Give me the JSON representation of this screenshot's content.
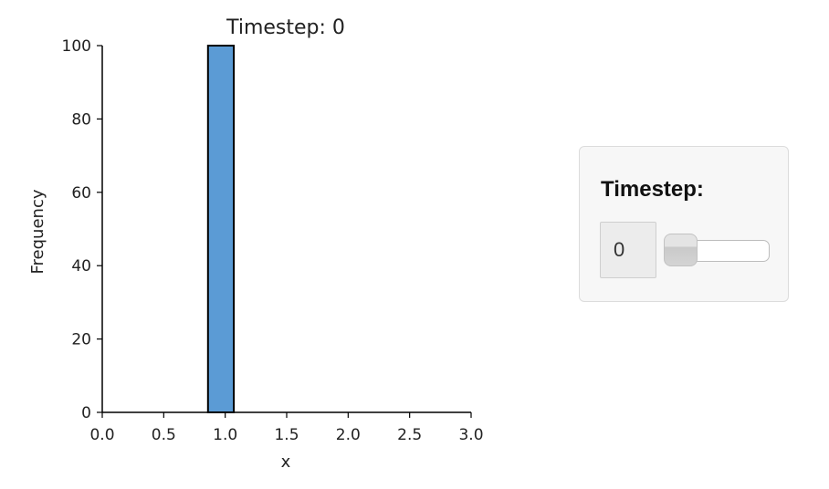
{
  "chart_data": {
    "type": "bar",
    "title": "Timestep: 0",
    "xlabel": "x",
    "ylabel": "Frequency",
    "xlim": [
      0.0,
      3.0
    ],
    "ylim": [
      0,
      100
    ],
    "xticks": [
      "0.0",
      "0.5",
      "1.0",
      "1.5",
      "2.0",
      "2.5",
      "3.0"
    ],
    "yticks": [
      "0",
      "20",
      "40",
      "60",
      "80",
      "100"
    ],
    "bars": [
      {
        "x_start": 0.86,
        "x_end": 1.07,
        "value": 100
      }
    ],
    "bar_color": "#5b9bd5",
    "bar_edge_color": "#000000",
    "grid": false
  },
  "controls": {
    "label": "Timestep:",
    "value": "0",
    "slider": {
      "min": 0,
      "max": 10,
      "value": 0
    }
  }
}
